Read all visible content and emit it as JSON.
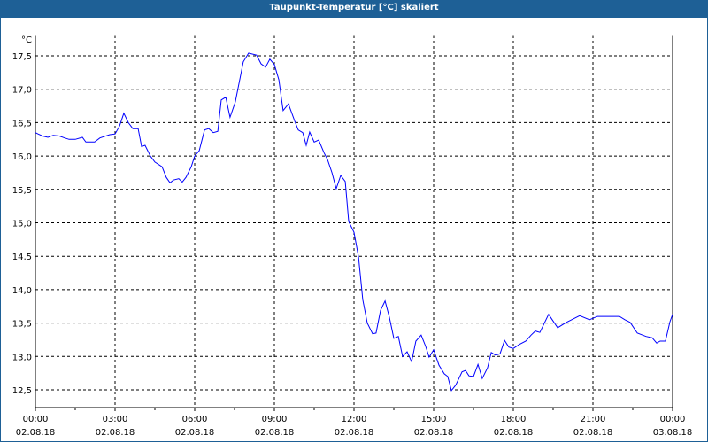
{
  "title": "Taupunkt-Temperatur [°C] skaliert",
  "chart_data": {
    "type": "line",
    "title": "Taupunkt-Temperatur [°C] skaliert",
    "ylabel": "°C",
    "xlabel": "",
    "ylim": [
      12.25,
      17.75
    ],
    "xlim_hours": [
      0,
      24
    ],
    "grid": true,
    "y_ticks": [
      "12,5",
      "13,0",
      "13,5",
      "14,0",
      "14,5",
      "15,0",
      "15,5",
      "16,0",
      "16,5",
      "17,0",
      "17,5"
    ],
    "y_tick_values": [
      12.5,
      13.0,
      13.5,
      14.0,
      14.5,
      15.0,
      15.5,
      16.0,
      16.5,
      17.0,
      17.5
    ],
    "x_ticks": [
      {
        "time": "00:00",
        "date": "02.08.18",
        "hour": 0
      },
      {
        "time": "03:00",
        "date": "02.08.18",
        "hour": 3
      },
      {
        "time": "06:00",
        "date": "02.08.18",
        "hour": 6
      },
      {
        "time": "09:00",
        "date": "02.08.18",
        "hour": 9
      },
      {
        "time": "12:00",
        "date": "02.08.18",
        "hour": 12
      },
      {
        "time": "15:00",
        "date": "02.08.18",
        "hour": 15
      },
      {
        "time": "18:00",
        "date": "02.08.18",
        "hour": 18
      },
      {
        "time": "21:00",
        "date": "02.08.18",
        "hour": 21
      },
      {
        "time": "00:00",
        "date": "03.08.18",
        "hour": 24
      }
    ],
    "line_color": "#0000ff",
    "series": [
      {
        "name": "Taupunkt",
        "x_hours": [
          0,
          0.1,
          0.27,
          0.47,
          0.67,
          0.9,
          1.1,
          1.27,
          1.5,
          1.77,
          1.9,
          2.23,
          2.43,
          2.8,
          3.0,
          3.17,
          3.33,
          3.5,
          3.67,
          3.87,
          4.0,
          4.13,
          4.33,
          4.5,
          4.77,
          4.93,
          5.07,
          5.2,
          5.4,
          5.53,
          5.67,
          5.87,
          6.0,
          6.17,
          6.37,
          6.53,
          6.7,
          6.87,
          7.0,
          7.17,
          7.33,
          7.53,
          7.83,
          8.03,
          8.33,
          8.5,
          8.67,
          8.83,
          9.0,
          9.17,
          9.33,
          9.53,
          9.77,
          9.9,
          10.07,
          10.2,
          10.33,
          10.5,
          10.67,
          10.87,
          11.0,
          11.17,
          11.33,
          11.5,
          11.67,
          11.8,
          12.0,
          12.17,
          12.33,
          12.5,
          12.7,
          12.83,
          13.0,
          13.17,
          13.33,
          13.5,
          13.67,
          13.83,
          14.0,
          14.17,
          14.33,
          14.53,
          14.7,
          14.83,
          15.0,
          15.2,
          15.4,
          15.53,
          15.67,
          15.83,
          16.07,
          16.2,
          16.33,
          16.5,
          16.67,
          16.83,
          17.03,
          17.17,
          17.33,
          17.5,
          17.67,
          17.83,
          18.0,
          18.23,
          18.47,
          18.67,
          18.83,
          19.0,
          19.33,
          19.67,
          20.0,
          20.2,
          20.5,
          20.87,
          21.17,
          21.67,
          22.0,
          22.2,
          22.4,
          22.67,
          23.0,
          23.23,
          23.4,
          23.53,
          23.73,
          23.9,
          24.0
        ],
        "values": [
          16.35,
          16.33,
          16.3,
          16.28,
          16.31,
          16.3,
          16.27,
          16.25,
          16.25,
          16.28,
          16.21,
          16.21,
          16.27,
          16.32,
          16.33,
          16.45,
          16.64,
          16.5,
          16.41,
          16.41,
          16.14,
          16.16,
          16.0,
          15.91,
          15.84,
          15.68,
          15.6,
          15.64,
          15.66,
          15.61,
          15.68,
          15.84,
          16.0,
          16.08,
          16.39,
          16.41,
          16.35,
          16.37,
          16.84,
          16.88,
          16.58,
          16.81,
          17.41,
          17.54,
          17.51,
          17.38,
          17.33,
          17.45,
          17.37,
          17.14,
          16.68,
          16.78,
          16.52,
          16.39,
          16.35,
          16.16,
          16.36,
          16.21,
          16.24,
          16.05,
          15.95,
          15.75,
          15.51,
          15.71,
          15.62,
          15.02,
          14.86,
          14.49,
          13.85,
          13.5,
          13.34,
          13.35,
          13.69,
          13.83,
          13.59,
          13.27,
          13.3,
          13.0,
          13.07,
          12.92,
          13.23,
          13.32,
          13.15,
          12.99,
          13.1,
          12.87,
          12.74,
          12.7,
          12.49,
          12.57,
          12.77,
          12.79,
          12.71,
          12.7,
          12.88,
          12.67,
          12.83,
          13.06,
          13.02,
          13.04,
          13.24,
          13.14,
          13.12,
          13.18,
          13.23,
          13.32,
          13.38,
          13.36,
          13.63,
          13.43,
          13.51,
          13.55,
          13.61,
          13.55,
          13.6,
          13.6,
          13.6,
          13.55,
          13.51,
          13.35,
          13.3,
          13.28,
          13.2,
          13.23,
          13.23,
          13.52,
          13.63
        ]
      }
    ]
  }
}
